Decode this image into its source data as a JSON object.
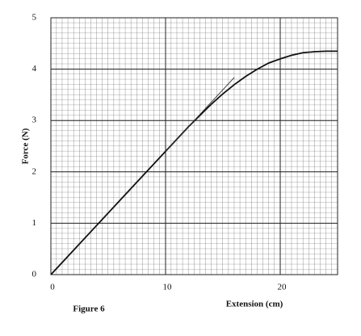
{
  "chart_data": {
    "type": "line",
    "caption": "Figure 6",
    "x_label": "Extension (cm)",
    "y_label": "Force (N)",
    "xlim": [
      0,
      25
    ],
    "ylim": [
      0,
      5
    ],
    "xticks": [
      0,
      10,
      20
    ],
    "yticks": [
      0,
      1,
      2,
      3,
      4,
      5
    ],
    "grid": true,
    "series": [
      {
        "color": "#111111",
        "x": [
          0,
          2,
          4,
          6,
          8,
          10,
          12,
          13,
          14,
          15,
          16,
          17,
          18,
          19,
          20,
          21,
          22,
          23,
          24,
          25
        ],
        "values": [
          0,
          0.48,
          0.96,
          1.44,
          1.92,
          2.4,
          2.88,
          3.1,
          3.32,
          3.52,
          3.7,
          3.86,
          4.0,
          4.12,
          4.2,
          4.27,
          4.32,
          4.34,
          4.35,
          4.35
        ]
      },
      {
        "color": "#333333",
        "x": [
          10,
          16
        ],
        "values": [
          2.4,
          3.84
        ]
      }
    ]
  }
}
